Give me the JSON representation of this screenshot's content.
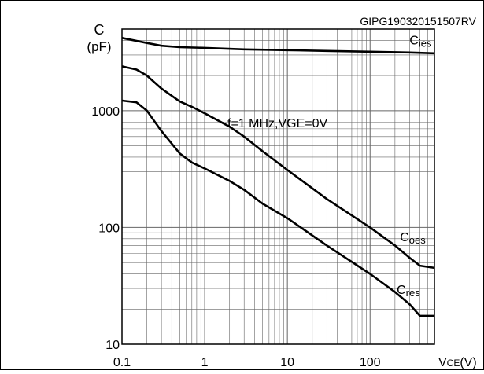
{
  "chart_data": {
    "type": "line",
    "reference_code": "GIPG190320151507RV",
    "condition_label": "f=1 MHz,VGE=0V",
    "x_axis": {
      "scale": "log",
      "range": [
        0.1,
        600
      ],
      "ticks": [
        {
          "value": 0.1,
          "label": "0.1"
        },
        {
          "value": 1,
          "label": "1"
        },
        {
          "value": 10,
          "label": "10"
        },
        {
          "value": 100,
          "label": "100"
        }
      ],
      "label_main": "V",
      "label_sub": "CE",
      "label_unit": "(V)"
    },
    "y_axis": {
      "scale": "log",
      "range": [
        10,
        5000
      ],
      "ticks": [
        {
          "value": 10,
          "label": "10"
        },
        {
          "value": 100,
          "label": "100"
        },
        {
          "value": 1000,
          "label": "1000"
        }
      ],
      "label_line1": "C",
      "label_line2": "(pF)"
    },
    "grid": true,
    "series": [
      {
        "name_main": "C",
        "name_sub": "ies",
        "label_anchor": [
          300,
          3700
        ],
        "points": [
          [
            0.1,
            4200
          ],
          [
            0.2,
            3800
          ],
          [
            0.3,
            3600
          ],
          [
            0.5,
            3500
          ],
          [
            1,
            3450
          ],
          [
            3,
            3350
          ],
          [
            10,
            3300
          ],
          [
            30,
            3250
          ],
          [
            100,
            3200
          ],
          [
            300,
            3150
          ],
          [
            600,
            3100
          ]
        ]
      },
      {
        "name_main": "C",
        "name_sub": "oes",
        "label_anchor": [
          230,
          76
        ],
        "points": [
          [
            0.1,
            2400
          ],
          [
            0.15,
            2250
          ],
          [
            0.2,
            2000
          ],
          [
            0.3,
            1550
          ],
          [
            0.5,
            1200
          ],
          [
            0.7,
            1080
          ],
          [
            1,
            950
          ],
          [
            2,
            730
          ],
          [
            3,
            600
          ],
          [
            5,
            450
          ],
          [
            10,
            310
          ],
          [
            30,
            175
          ],
          [
            100,
            100
          ],
          [
            200,
            70
          ],
          [
            300,
            55
          ],
          [
            400,
            47
          ],
          [
            600,
            45
          ]
        ]
      },
      {
        "name_main": "C",
        "name_sub": "res",
        "label_anchor": [
          210,
          27
        ],
        "points": [
          [
            0.1,
            1220
          ],
          [
            0.15,
            1180
          ],
          [
            0.2,
            1000
          ],
          [
            0.3,
            670
          ],
          [
            0.5,
            430
          ],
          [
            0.7,
            360
          ],
          [
            1,
            320
          ],
          [
            2,
            250
          ],
          [
            3,
            210
          ],
          [
            5,
            160
          ],
          [
            10,
            120
          ],
          [
            30,
            70
          ],
          [
            100,
            40
          ],
          [
            200,
            28
          ],
          [
            300,
            22
          ],
          [
            400,
            17.5
          ],
          [
            600,
            17.5
          ]
        ]
      }
    ]
  }
}
